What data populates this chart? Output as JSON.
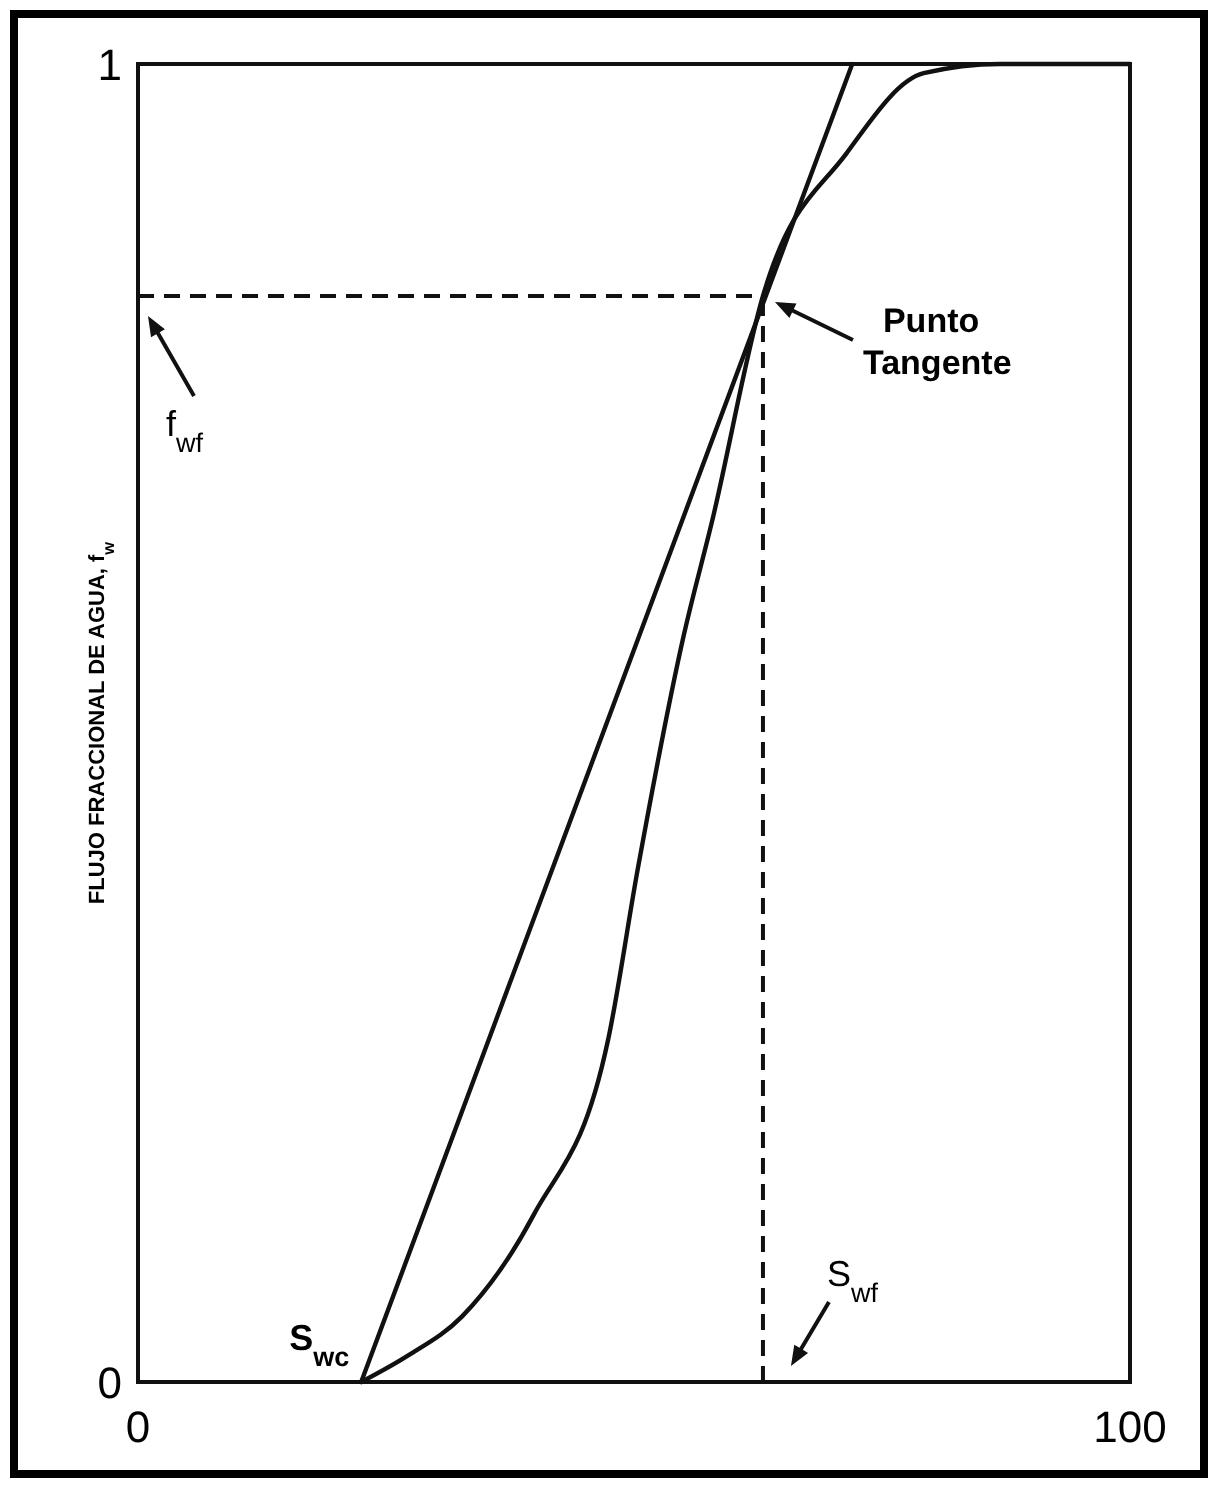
{
  "chart_data": {
    "type": "line",
    "ylabel": "FLUJO FRACCIONAL DE AGUA, f$_{w}$",
    "xlim": [
      0,
      100
    ],
    "ylim": [
      0,
      1
    ],
    "xticks": [
      0,
      100
    ],
    "yticks": [
      0,
      1
    ],
    "marker": "none",
    "line_style": "solid",
    "series": [
      {
        "color": "#111111",
        "x": [
          22.5,
          27.2,
          32.7,
          39.9,
          47.4,
          50.4,
          55,
          57.9,
          63,
          71.4,
          79.2,
          86.9,
          100
        ],
        "values": [
          0,
          0.02,
          0.05,
          0.127,
          0.26,
          0.39,
          0.566,
          0.654,
          0.824,
          0.932,
          0.993,
          1,
          1
        ]
      },
      {
        "color": "#111111",
        "x": [
          22.5,
          72
        ],
        "values": [
          0,
          1
        ]
      }
    ],
    "ref_lines": [
      {
        "axis": "y",
        "value": 0.824,
        "label": "f$_{wf}$",
        "line_style": "dashed"
      },
      {
        "axis": "x",
        "value": 63,
        "label": "S$_{wf}$",
        "line_style": "dashed"
      }
    ],
    "annotations": [
      {
        "text": "Punto Tangente",
        "x": 63,
        "y": 0.824
      },
      {
        "text": "S$_{wc}$",
        "x": 22.5,
        "y": 0
      }
    ]
  }
}
